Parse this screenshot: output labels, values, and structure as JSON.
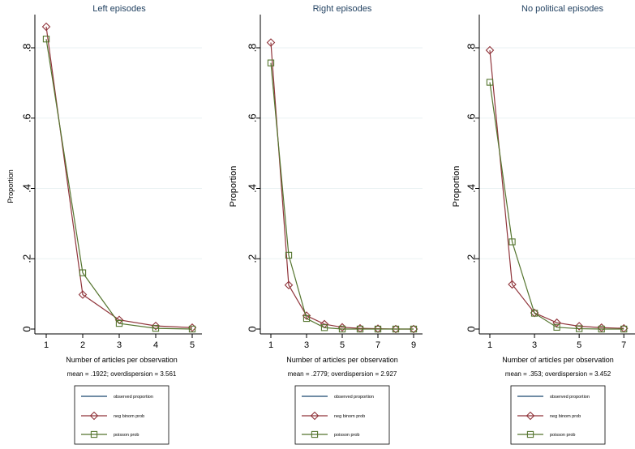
{
  "colors": {
    "observed": "#1a476f",
    "negbin": "#90353b",
    "poisson": "#55752f",
    "grid": "#eaf2f3",
    "axis": "#000000",
    "title": "#1f3f5f"
  },
  "chart_data": [
    {
      "type": "line",
      "title": "Left episodes",
      "xlabel": "Number of articles per observation",
      "ylabel": "Proportion",
      "note": "mean = .1922; overdispersion = 3.561",
      "xticks": [
        1,
        2,
        3,
        4,
        5
      ],
      "xlim": [
        1,
        5
      ],
      "yticks": [
        0,
        0.2,
        0.4,
        0.6,
        0.8
      ],
      "ytick_labels": [
        "0",
        ".2",
        ".4",
        ".6",
        ".8"
      ],
      "ylim": [
        0,
        0.9
      ],
      "grid": true,
      "legend": "bottom",
      "legend_items": [
        "observed proportion",
        "neg binom prob",
        "poisson prob"
      ],
      "series": [
        {
          "name": "observed proportion",
          "x": [],
          "y": [],
          "marker": "none"
        },
        {
          "name": "neg binom prob",
          "x": [
            1,
            2,
            3,
            4,
            5
          ],
          "y": [
            0.86,
            0.098,
            0.026,
            0.009,
            0.004
          ],
          "marker": "diamond"
        },
        {
          "name": "poisson prob",
          "x": [
            1,
            2,
            3,
            4,
            5
          ],
          "y": [
            0.825,
            0.16,
            0.016,
            0.002,
            0.0
          ],
          "marker": "square"
        }
      ]
    },
    {
      "type": "line",
      "title": "Right episodes",
      "xlabel": "Number of articles per observation",
      "ylabel": "Proportion",
      "note": "mean = .2779; overdispersion = 2.927",
      "xticks": [
        1,
        3,
        5,
        7,
        9
      ],
      "xlim": [
        1,
        9
      ],
      "yticks": [
        0,
        0.2,
        0.4,
        0.6,
        0.8
      ],
      "ytick_labels": [
        "0",
        ".2",
        ".4",
        ".6",
        ".8"
      ],
      "ylim": [
        0,
        0.9
      ],
      "grid": true,
      "legend": "bottom",
      "legend_items": [
        "observed proportion",
        "neg binom prob",
        "poisson prob"
      ],
      "series": [
        {
          "name": "observed proportion",
          "x": [],
          "y": [],
          "marker": "none"
        },
        {
          "name": "neg binom prob",
          "x": [
            1,
            2,
            3,
            4,
            5,
            6,
            7,
            8,
            9
          ],
          "y": [
            0.815,
            0.125,
            0.038,
            0.014,
            0.005,
            0.002,
            0.001,
            0.0,
            0.0
          ],
          "marker": "diamond"
        },
        {
          "name": "poisson prob",
          "x": [
            1,
            2,
            3,
            4,
            5,
            6,
            7,
            8,
            9
          ],
          "y": [
            0.757,
            0.21,
            0.03,
            0.004,
            0.0,
            0.0,
            0.0,
            0.0,
            0.0
          ],
          "marker": "square"
        }
      ]
    },
    {
      "type": "line",
      "title": "No political episodes",
      "xlabel": "Number of articles per observation",
      "ylabel": "Proportion",
      "note": "mean = .353; overdispersion = 3.452",
      "xticks": [
        1,
        3,
        5,
        7
      ],
      "xlim": [
        1,
        7.5
      ],
      "yticks": [
        0,
        0.2,
        0.4,
        0.6,
        0.8
      ],
      "ytick_labels": [
        "0",
        ".2",
        ".4",
        ".6",
        ".8"
      ],
      "ylim": [
        0,
        0.9
      ],
      "grid": true,
      "legend": "bottom",
      "legend_items": [
        "observed proportion",
        "neg binom prob",
        "poisson prob"
      ],
      "series": [
        {
          "name": "observed proportion",
          "x": [],
          "y": [],
          "marker": "none"
        },
        {
          "name": "neg binom prob",
          "x": [
            1,
            2,
            3,
            4,
            5,
            6,
            7,
            8
          ],
          "y": [
            0.793,
            0.127,
            0.046,
            0.018,
            0.008,
            0.004,
            0.002,
            0.001
          ],
          "marker": "diamond"
        },
        {
          "name": "poisson prob",
          "x": [
            1,
            2,
            3,
            4,
            5,
            6,
            7,
            8
          ],
          "y": [
            0.702,
            0.248,
            0.045,
            0.005,
            0.001,
            0.0,
            0.0,
            0.0
          ],
          "marker": "square"
        }
      ]
    }
  ]
}
